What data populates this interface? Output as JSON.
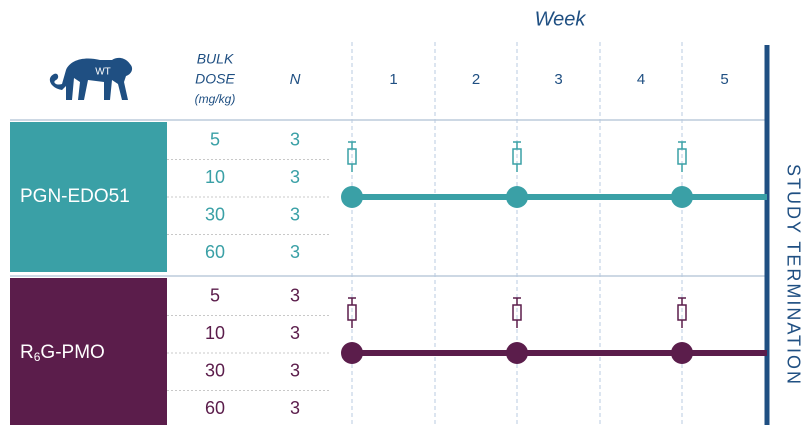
{
  "header": {
    "icon_label": "WT",
    "dose_label": [
      "BULK",
      "DOSE",
      "(mg/kg)"
    ],
    "n_label": "N",
    "week_label": "Week",
    "weeks": [
      "1",
      "2",
      "3",
      "4",
      "5"
    ]
  },
  "groups": [
    {
      "name": {
        "base": "PGN-EDO51"
      },
      "color": "#3aa0a6",
      "rows": [
        {
          "dose": "5",
          "n": "3"
        },
        {
          "dose": "10",
          "n": "3"
        },
        {
          "dose": "30",
          "n": "3"
        },
        {
          "dose": "60",
          "n": "3"
        }
      ]
    },
    {
      "name": {
        "base": "R",
        "sub": "6",
        "rest": "G-PMO"
      },
      "color": "#5b1d4b",
      "rows": [
        {
          "dose": "5",
          "n": "3"
        },
        {
          "dose": "10",
          "n": "3"
        },
        {
          "dose": "30",
          "n": "3"
        },
        {
          "dose": "60",
          "n": "3"
        }
      ]
    }
  ],
  "termination": "STUDY TERMINATION"
}
